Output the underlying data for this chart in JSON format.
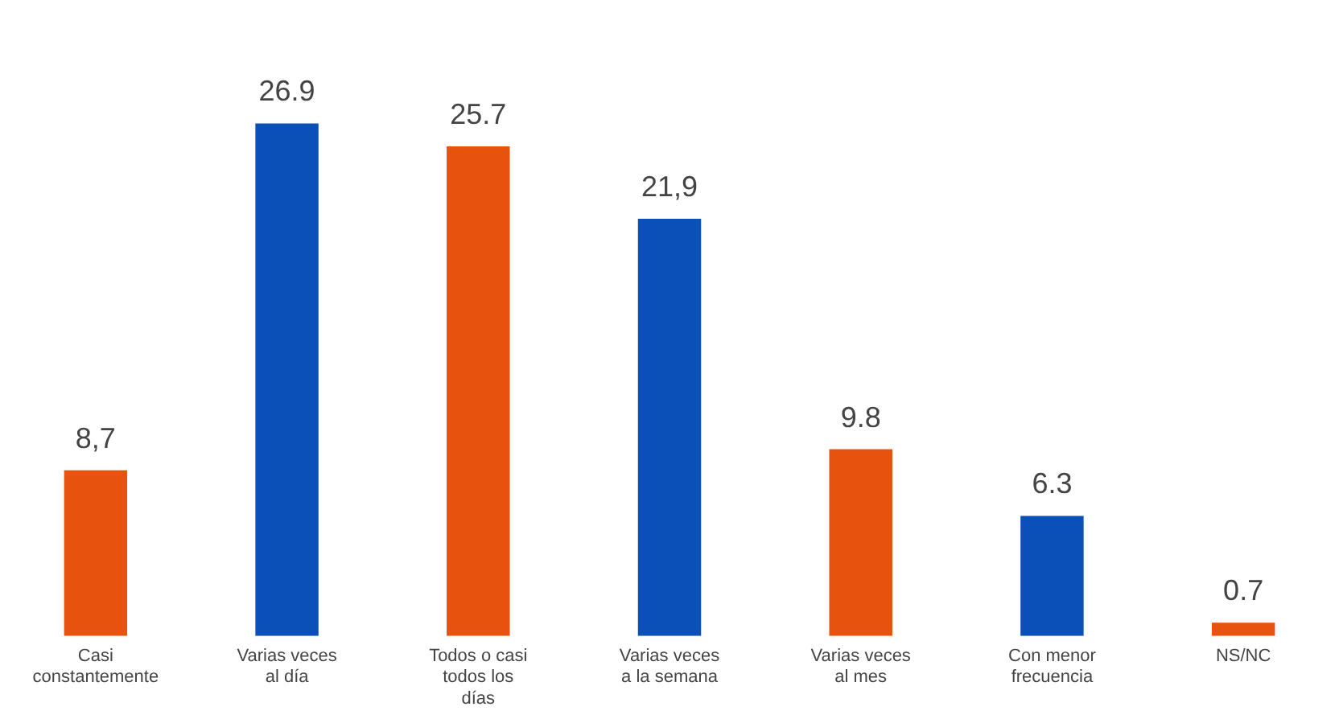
{
  "chart_data": {
    "type": "bar",
    "categories": [
      "Casi constantemente",
      "Varias veces al día",
      "Todos o casi todos los días",
      "Varias veces a la semana",
      "Varias veces al mes",
      "Con menor frecuencia",
      "NS/NC"
    ],
    "values": [
      8.7,
      26.9,
      25.7,
      21.9,
      9.8,
      6.3,
      0.7
    ],
    "value_labels": [
      "8,7",
      "26.9",
      "25.7",
      "21,9",
      "9.8",
      "6.3",
      "0.7"
    ],
    "colors": [
      "#e8520f",
      "#0b4fb8",
      "#e8520f",
      "#0b4fb8",
      "#e8520f",
      "#0b4fb8",
      "#e8520f"
    ],
    "grid": false,
    "legend": false
  }
}
